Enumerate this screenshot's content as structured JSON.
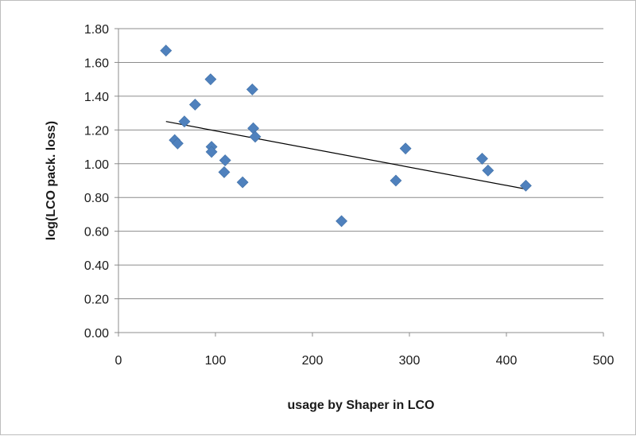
{
  "chart_data": {
    "type": "scatter",
    "title": "",
    "xlabel": "usage by Shaper in LCO",
    "ylabel": "log(LCO pack. loss)",
    "xlim": [
      0,
      500
    ],
    "ylim": [
      0,
      1.8
    ],
    "x_ticks": [
      0,
      100,
      200,
      300,
      400,
      500
    ],
    "x_tick_labels": [
      "0",
      "100",
      "200",
      "300",
      "400",
      "500"
    ],
    "y_ticks": [
      0,
      0.2,
      0.4,
      0.6,
      0.8,
      1.0,
      1.2,
      1.4,
      1.6,
      1.8
    ],
    "y_tick_labels": [
      "0.00",
      "0.20",
      "0.40",
      "0.60",
      "0.80",
      "1.00",
      "1.20",
      "1.40",
      "1.60",
      "1.80"
    ],
    "grid": "horizontal",
    "legend": "none",
    "marker_color": "#4f81bd",
    "marker": "diamond",
    "trendline_color": "#000000",
    "points": [
      {
        "x": 49,
        "y": 1.67
      },
      {
        "x": 58,
        "y": 1.14
      },
      {
        "x": 61,
        "y": 1.12
      },
      {
        "x": 68,
        "y": 1.25
      },
      {
        "x": 79,
        "y": 1.35
      },
      {
        "x": 95,
        "y": 1.5
      },
      {
        "x": 96,
        "y": 1.1
      },
      {
        "x": 96,
        "y": 1.07
      },
      {
        "x": 110,
        "y": 1.02
      },
      {
        "x": 109,
        "y": 0.95
      },
      {
        "x": 128,
        "y": 0.89
      },
      {
        "x": 138,
        "y": 1.44
      },
      {
        "x": 139,
        "y": 1.21
      },
      {
        "x": 141,
        "y": 1.16
      },
      {
        "x": 230,
        "y": 0.66
      },
      {
        "x": 286,
        "y": 0.9
      },
      {
        "x": 296,
        "y": 1.09
      },
      {
        "x": 375,
        "y": 1.03
      },
      {
        "x": 381,
        "y": 0.96
      },
      {
        "x": 420,
        "y": 0.87
      }
    ],
    "trendline": {
      "x": [
        49,
        420
      ],
      "y": [
        1.25,
        0.85
      ]
    }
  }
}
